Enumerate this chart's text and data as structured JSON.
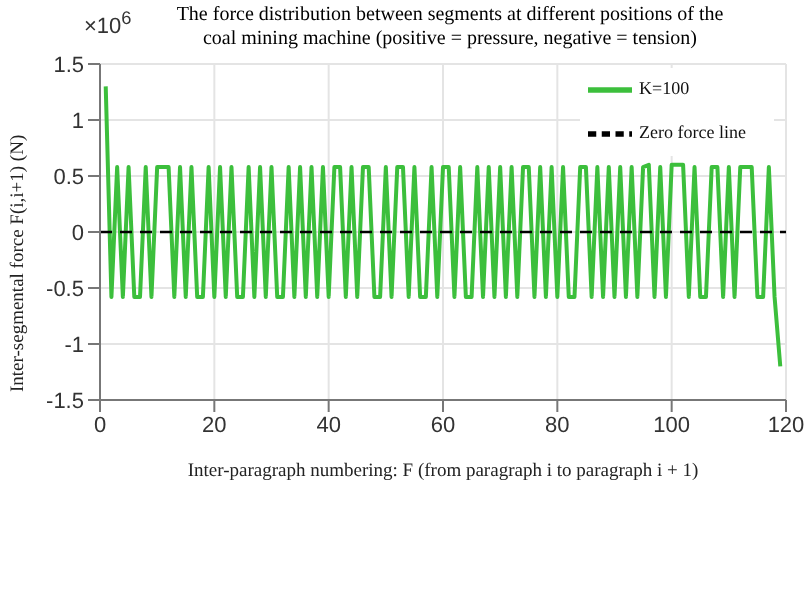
{
  "chart_data": {
    "type": "line",
    "title": "The force distribution between segments at different positions of the coal mining machine (positive = pressure, negative = tension)",
    "xlabel": "Inter-paragraph numbering: F (from paragraph i to paragraph i + 1)",
    "ylabel": "Inter-segmental force F(i,i+1) (N)",
    "annotations": [
      "×10$^{6}$"
    ],
    "x": [
      1,
      2,
      3,
      4,
      5,
      6,
      7,
      8,
      9,
      10,
      11,
      12,
      13,
      14,
      15,
      16,
      17,
      18,
      19,
      20,
      21,
      22,
      23,
      24,
      25,
      26,
      27,
      28,
      29,
      30,
      31,
      32,
      33,
      34,
      35,
      36,
      37,
      38,
      39,
      40,
      41,
      42,
      43,
      44,
      45,
      46,
      47,
      48,
      49,
      50,
      51,
      52,
      53,
      54,
      55,
      56,
      57,
      58,
      59,
      60,
      61,
      62,
      63,
      64,
      65,
      66,
      67,
      68,
      69,
      70,
      71,
      72,
      73,
      74,
      75,
      76,
      77,
      78,
      79,
      80,
      81,
      82,
      83,
      84,
      85,
      86,
      87,
      88,
      89,
      90,
      91,
      92,
      93,
      94,
      95,
      96,
      97,
      98,
      99,
      100,
      101,
      102,
      103,
      104,
      105,
      106,
      107,
      108,
      109,
      110,
      111,
      112,
      113,
      114,
      115,
      116,
      117,
      118,
      119
    ],
    "series": [
      {
        "name": "K=100",
        "color": "#3cbf3c",
        "line_style": "solid",
        "values": [
          1.3,
          -0.58,
          0.58,
          -0.58,
          0.58,
          -0.58,
          -0.58,
          0.58,
          -0.58,
          0.58,
          0.58,
          0.58,
          -0.58,
          0.58,
          -0.58,
          0.58,
          -0.58,
          -0.58,
          0.58,
          -0.58,
          0.58,
          -0.58,
          0.58,
          -0.58,
          -0.58,
          0.58,
          -0.58,
          0.58,
          -0.58,
          0.58,
          -0.58,
          -0.58,
          0.58,
          -0.58,
          0.58,
          -0.58,
          0.58,
          -0.58,
          0.58,
          -0.58,
          0.58,
          0.58,
          -0.58,
          0.58,
          -0.58,
          0.58,
          0.58,
          -0.58,
          -0.58,
          0.58,
          -0.58,
          0.58,
          0.58,
          -0.58,
          0.58,
          -0.58,
          -0.58,
          0.58,
          -0.58,
          0.58,
          0.58,
          -0.58,
          0.58,
          -0.58,
          -0.58,
          0.58,
          -0.58,
          0.58,
          -0.58,
          0.58,
          -0.58,
          0.58,
          -0.58,
          0.58,
          0.58,
          -0.58,
          0.58,
          -0.58,
          0.58,
          -0.58,
          0.58,
          -0.58,
          -0.58,
          0.58,
          0.58,
          -0.58,
          0.58,
          -0.58,
          0.58,
          -0.58,
          0.58,
          -0.58,
          0.58,
          -0.58,
          0.58,
          0.6,
          -0.58,
          0.58,
          -0.58,
          0.6,
          0.6,
          0.6,
          -0.58,
          0.58,
          -0.58,
          -0.58,
          0.58,
          0.58,
          -0.58,
          0.58,
          -0.58,
          0.58,
          0.58,
          0.58,
          -0.58,
          -0.58,
          0.58,
          -0.58,
          -1.2
        ]
      },
      {
        "name": "Zero force line",
        "color": "#000000",
        "line_style": "dashed",
        "x": [
          0,
          120
        ],
        "values": [
          0,
          0
        ]
      }
    ],
    "xlim": [
      0,
      120
    ],
    "xticks": [
      0,
      20,
      40,
      60,
      80,
      100,
      120
    ],
    "ylim": [
      -1.5,
      1.5
    ],
    "yticks": [
      -1.5,
      -1,
      -0.5,
      0,
      0.5,
      1,
      1.5
    ],
    "grid": true,
    "legend": "top right",
    "marker": "none"
  }
}
